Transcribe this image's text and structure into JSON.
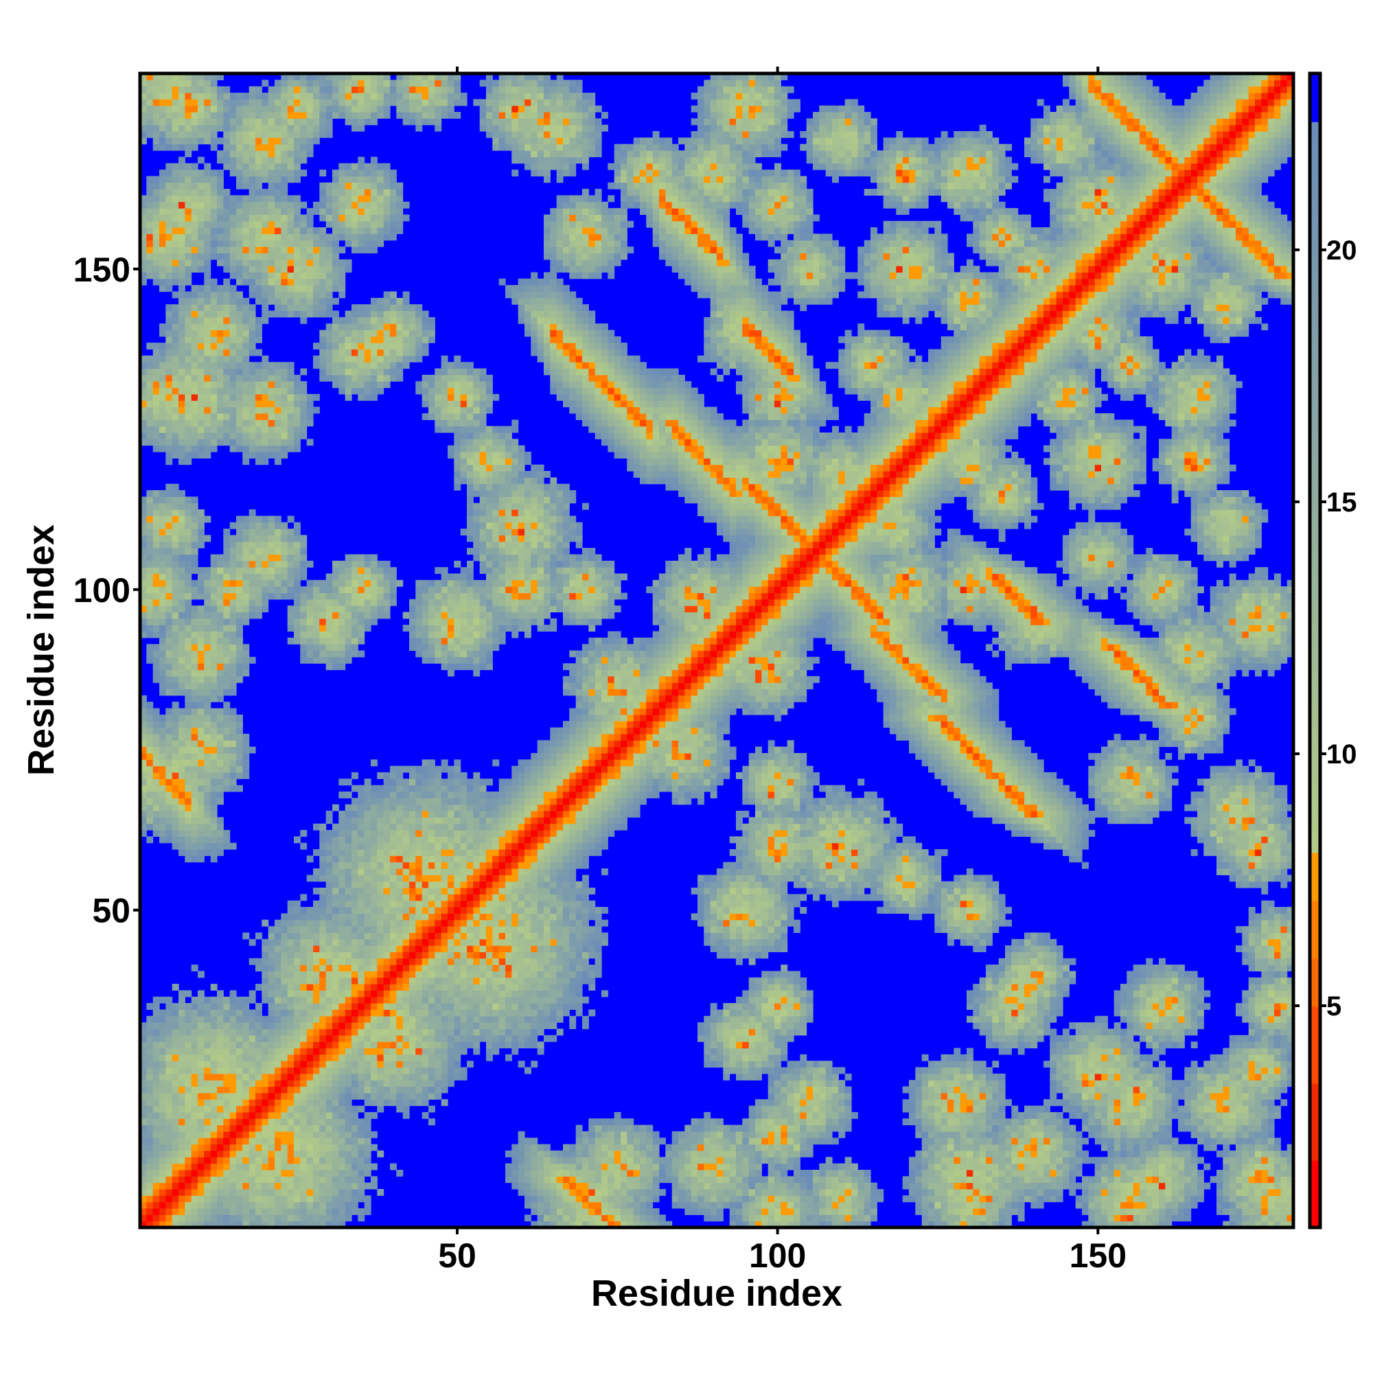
{
  "chart_data": {
    "type": "heatmap",
    "title": "",
    "xlabel": "Residue index",
    "ylabel": "Residue index",
    "n_residues": 180,
    "xlim": [
      0.5,
      180.5
    ],
    "ylim": [
      0.5,
      180.5
    ],
    "x_ticks": [
      50,
      100,
      150
    ],
    "y_ticks": [
      50,
      100,
      150
    ],
    "x_tick_labels": [
      "50",
      "100",
      "150"
    ],
    "y_tick_labels": [
      "50",
      "100",
      "150"
    ],
    "colorbar": {
      "range": [
        0.6,
        23.5
      ],
      "ticks": [
        5,
        10,
        15,
        20
      ],
      "tick_labels": [
        "5",
        "10",
        "15",
        "20"
      ],
      "cutoff": 22.5,
      "stops": [
        {
          "max": 2.0,
          "color": "#ff0000"
        },
        {
          "max": 3.5,
          "color": "#f22a00"
        },
        {
          "max": 5.0,
          "color": "#ff4a00"
        },
        {
          "max": 6.0,
          "color": "#ff6a00"
        },
        {
          "max": 7.0,
          "color": "#ff8000"
        },
        {
          "max": 8.0,
          "color": "#ff9a00"
        }
      ],
      "gradient_low": "#b4cc88",
      "gradient_high": "#6a8cb8",
      "above_cutoff_color": "#0000ff"
    },
    "matrix_model": {
      "description_units": "residue index; values in distance units of colorbar",
      "diagonal": {
        "base": 1.2,
        "slope": 1.6
      },
      "antiparallel": [
        {
          "a": [
            65,
            80
          ],
          "sum": 205
        },
        {
          "a": [
            95,
            102
          ],
          "sum": 236
        },
        {
          "a": [
            82,
            91
          ],
          "sum": 243
        },
        {
          "a": [
            95,
            106
          ],
          "sum": 212
        },
        {
          "a": [
            84,
            93
          ],
          "sum": 209
        },
        {
          "a": [
            149,
            162
          ],
          "sum": 328
        },
        {
          "a": [
            1,
            8
          ],
          "sum": 75
        }
      ],
      "blobs": [
        [
          12,
          22,
          16
        ],
        [
          45,
          55,
          18
        ],
        [
          30,
          40,
          12
        ],
        [
          5,
          70,
          9
        ],
        [
          10,
          75,
          8
        ],
        [
          3,
          100,
          7
        ],
        [
          15,
          100,
          6
        ],
        [
          35,
          100,
          6
        ],
        [
          50,
          95,
          8
        ],
        [
          60,
          100,
          7
        ],
        [
          5,
          130,
          8
        ],
        [
          12,
          140,
          8
        ],
        [
          35,
          137,
          7
        ],
        [
          50,
          130,
          6
        ],
        [
          55,
          120,
          6
        ],
        [
          5,
          155,
          8
        ],
        [
          20,
          155,
          8
        ],
        [
          35,
          160,
          7
        ],
        [
          8,
          175,
          7
        ],
        [
          25,
          175,
          6
        ],
        [
          45,
          178,
          6
        ],
        [
          65,
          172,
          8
        ],
        [
          70,
          155,
          7
        ],
        [
          80,
          165,
          6
        ],
        [
          90,
          165,
          7
        ],
        [
          95,
          140,
          7
        ],
        [
          100,
          120,
          8
        ],
        [
          75,
          85,
          8
        ],
        [
          88,
          98,
          8
        ],
        [
          110,
          118,
          7
        ],
        [
          120,
          130,
          6
        ],
        [
          60,
          110,
          9
        ],
        [
          70,
          100,
          6
        ],
        [
          8,
          130,
          10
        ],
        [
          20,
          128,
          8
        ],
        [
          5,
          110,
          6
        ],
        [
          20,
          105,
          7
        ],
        [
          10,
          90,
          8
        ],
        [
          30,
          95,
          7
        ],
        [
          40,
          140,
          6
        ],
        [
          25,
          150,
          8
        ],
        [
          8,
          160,
          7
        ],
        [
          5,
          178,
          9
        ],
        [
          20,
          170,
          8
        ],
        [
          35,
          178,
          6
        ],
        [
          95,
          175,
          8
        ],
        [
          110,
          170,
          6
        ],
        [
          120,
          165,
          6
        ],
        [
          60,
          175,
          7
        ],
        [
          130,
          165,
          7
        ],
        [
          145,
          170,
          6
        ],
        [
          150,
          160,
          8
        ],
        [
          120,
          150,
          8
        ],
        [
          105,
          150,
          6
        ],
        [
          140,
          150,
          6
        ],
        [
          100,
          160,
          6
        ],
        [
          130,
          145,
          6
        ],
        [
          115,
          135,
          6
        ],
        [
          100,
          130,
          6
        ],
        [
          135,
          155,
          5
        ],
        [
          38,
          137,
          4
        ],
        [
          139,
          38,
          4
        ]
      ]
    }
  }
}
